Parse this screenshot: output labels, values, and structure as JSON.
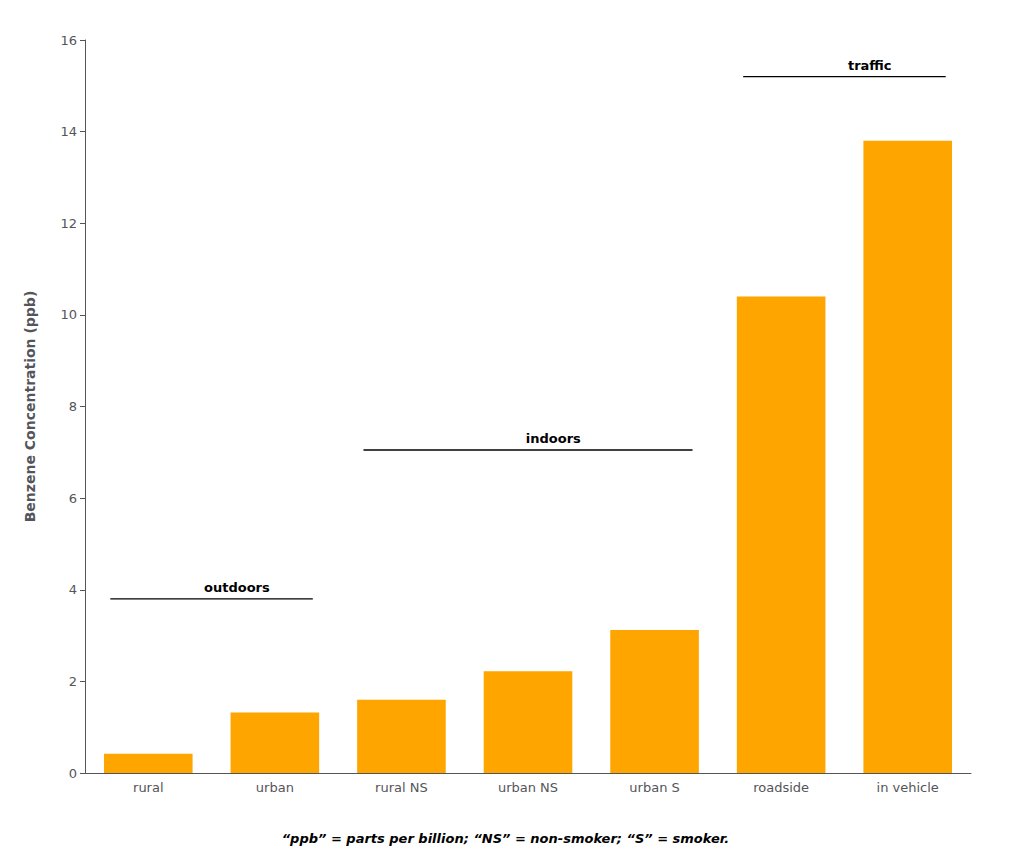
{
  "chart_data": {
    "type": "bar",
    "categories": [
      "rural",
      "urban",
      "rural NS",
      "urban NS",
      "urban S",
      "roadside",
      "in vehicle"
    ],
    "values": [
      0.42,
      1.32,
      1.6,
      2.22,
      3.12,
      10.4,
      13.8
    ],
    "color": "#FFA500",
    "ylabel": "Benzene Concentration (ppb)",
    "ylim": [
      0,
      16
    ],
    "yticks": [
      0,
      2,
      4,
      6,
      8,
      10,
      12,
      14,
      16
    ],
    "grid": false,
    "annotations": [
      {
        "label": "outdoors",
        "from": "rural",
        "to": "urban",
        "y": 3.8
      },
      {
        "label": "indoors",
        "from": "rural NS",
        "to": "urban S",
        "y": 7.05
      },
      {
        "label": "traffic",
        "from": "roadside",
        "to": "in vehicle",
        "y": 15.2
      }
    ],
    "footnote": "“ppb” = parts per billion; “NS” = non-smoker; “S” = smoker."
  }
}
